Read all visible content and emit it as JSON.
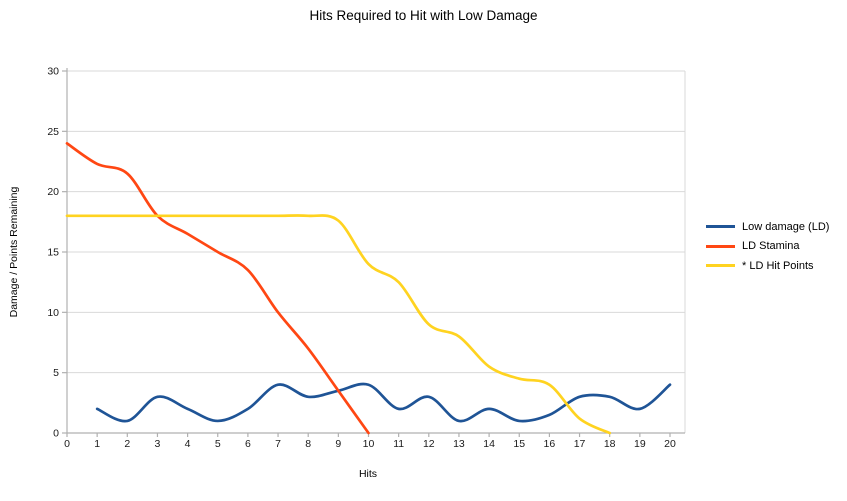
{
  "title": "Hits Required to Hit with Low Damage",
  "chart_data": {
    "type": "line",
    "title": "Hits Required to Hit with Low Damage",
    "xlabel": "Hits",
    "ylabel": "Damage / Points Remaining",
    "xlim": [
      0,
      20
    ],
    "ylim": [
      0,
      30
    ],
    "x_ticks": [
      0,
      1,
      2,
      3,
      4,
      5,
      6,
      7,
      8,
      9,
      10,
      11,
      12,
      13,
      14,
      15,
      16,
      17,
      18,
      19,
      20
    ],
    "y_ticks": [
      0,
      5,
      10,
      15,
      20,
      25,
      30
    ],
    "grid": "horizontal-only",
    "legend_position": "right",
    "line_smoothing": "cubic-spline",
    "series": [
      {
        "name": "Low damage (LD)",
        "color": "#1F5496",
        "x": [
          1,
          2,
          3,
          4,
          5,
          6,
          7,
          8,
          9,
          10,
          11,
          12,
          13,
          14,
          15,
          16,
          17,
          18,
          19,
          20
        ],
        "y": [
          2,
          1,
          3,
          2,
          1,
          2,
          4,
          3,
          3.5,
          4,
          2,
          3,
          1,
          2,
          1,
          1.5,
          3,
          3,
          2,
          4
        ]
      },
      {
        "name": "LD Stamina",
        "color": "#FF4713",
        "x": [
          0,
          1,
          2,
          3,
          4,
          5,
          6,
          7,
          8,
          9,
          10
        ],
        "y": [
          24,
          22.3,
          21.5,
          18,
          16.5,
          15,
          13.5,
          10,
          7,
          3.5,
          0
        ]
      },
      {
        "name": "* LD Hit Points",
        "color": "#FFD320",
        "x": [
          0,
          1,
          2,
          3,
          4,
          5,
          6,
          7,
          8,
          9,
          10,
          11,
          12,
          13,
          14,
          15,
          16,
          17,
          18
        ],
        "y": [
          18,
          18,
          18,
          18,
          18,
          18,
          18,
          18,
          18,
          17.6,
          14,
          12.5,
          9,
          8,
          5.5,
          4.5,
          4,
          1.2,
          0
        ]
      }
    ],
    "style": {
      "grid_color": "#d9d9d9",
      "axis_color": "#b0b0b0",
      "tick_text_color": "#1a1a1a"
    }
  }
}
